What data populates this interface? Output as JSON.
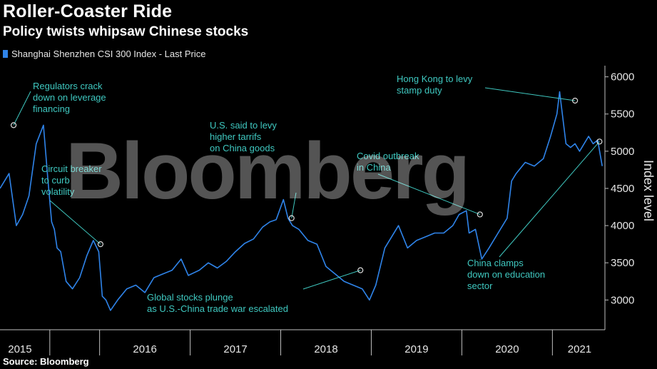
{
  "chart_data": {
    "type": "line",
    "title": "Roller-Coaster Ride",
    "subtitle": "Policy twists whipsaw Chinese stocks",
    "ylabel": "Index level",
    "source": "Source: Bloomberg",
    "watermark": "Bloomberg",
    "ylim": [
      2600,
      6150
    ],
    "xlim": [
      2014.9,
      2021.58
    ],
    "y_ticks": [
      3000,
      3500,
      4000,
      4500,
      5000,
      5500,
      6000
    ],
    "x_tick_labels": [
      "2015",
      "2016",
      "2017",
      "2018",
      "2019",
      "2020",
      "2021"
    ],
    "grid": false,
    "legend_position": "top-left",
    "colors": {
      "line": "#2f84ea",
      "annotation": "#3fc8c0",
      "axis": "#bfbfbf"
    },
    "series": [
      {
        "name": "Shanghai Shenzhen CSI 300 Index - Last Price",
        "x": [
          2014.9,
          2015.0,
          2015.08,
          2015.15,
          2015.22,
          2015.3,
          2015.38,
          2015.43,
          2015.47,
          2015.5,
          2015.53,
          2015.57,
          2015.63,
          2015.7,
          2015.78,
          2015.86,
          2015.93,
          2015.99,
          2016.03,
          2016.07,
          2016.12,
          2016.2,
          2016.3,
          2016.4,
          2016.5,
          2016.6,
          2016.7,
          2016.8,
          2016.9,
          2016.98,
          2017.1,
          2017.2,
          2017.3,
          2017.4,
          2017.5,
          2017.6,
          2017.7,
          2017.8,
          2017.88,
          2017.95,
          2018.03,
          2018.08,
          2018.13,
          2018.2,
          2018.3,
          2018.4,
          2018.5,
          2018.6,
          2018.7,
          2018.8,
          2018.9,
          2018.98,
          2019.05,
          2019.15,
          2019.3,
          2019.4,
          2019.5,
          2019.6,
          2019.7,
          2019.8,
          2019.9,
          2019.97,
          2020.05,
          2020.08,
          2020.15,
          2020.22,
          2020.3,
          2020.4,
          2020.5,
          2020.55,
          2020.6,
          2020.7,
          2020.8,
          2020.9,
          2020.98,
          2021.05,
          2021.08,
          2021.11,
          2021.15,
          2021.2,
          2021.25,
          2021.3,
          2021.4,
          2021.45,
          2021.5,
          2021.55
        ],
        "values": [
          4500,
          4700,
          4000,
          4150,
          4400,
          5100,
          5350,
          4600,
          4050,
          3950,
          3700,
          3650,
          3250,
          3150,
          3300,
          3600,
          3800,
          3650,
          3050,
          3000,
          2860,
          3000,
          3150,
          3200,
          3100,
          3300,
          3350,
          3400,
          3550,
          3330,
          3400,
          3500,
          3430,
          3520,
          3650,
          3760,
          3820,
          3980,
          4050,
          4080,
          4350,
          4100,
          4000,
          3950,
          3800,
          3750,
          3450,
          3350,
          3250,
          3200,
          3150,
          3000,
          3200,
          3700,
          4000,
          3700,
          3800,
          3850,
          3900,
          3900,
          4000,
          4150,
          4200,
          3900,
          3950,
          3550,
          3700,
          3900,
          4100,
          4600,
          4700,
          4850,
          4800,
          4900,
          5200,
          5500,
          5800,
          5500,
          5100,
          5050,
          5100,
          5000,
          5200,
          5100,
          5150,
          4800
        ]
      }
    ],
    "year_boundaries": [
      2015.45,
      2016.0,
      2017.0,
      2018.0,
      2019.0,
      2020.0,
      2021.0
    ],
    "annotations": [
      {
        "text": "Regulators crack\ndown on leverage\nfinancing",
        "x": 2015.05,
        "y": 5350
      },
      {
        "text": "Circuit breaker\nto curb\nvolatility",
        "x": 2016.01,
        "y": 3750
      },
      {
        "text": "U.S. said to levy\nhigher tarrifs\non China goods",
        "x": 2018.12,
        "y": 4100
      },
      {
        "text": "Global stocks plunge\nas U.S.-China trade war escalated",
        "x": 2018.88,
        "y": 3400
      },
      {
        "text": "Covid outbreak\nin China",
        "x": 2020.2,
        "y": 4150
      },
      {
        "text": "Hong Kong to levy\nstamp duty",
        "x": 2021.25,
        "y": 5680
      },
      {
        "text": "China clamps\ndown on education\nsector",
        "x": 2021.52,
        "y": 5130
      }
    ]
  }
}
